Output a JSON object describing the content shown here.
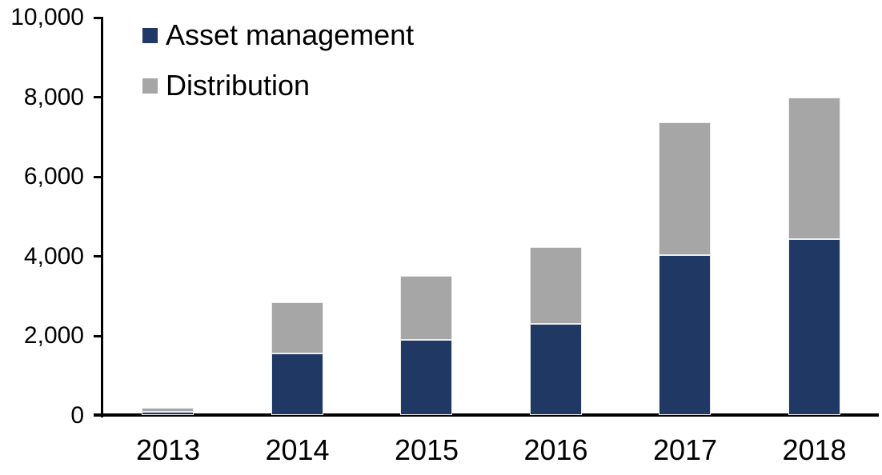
{
  "chart_data": {
    "type": "bar",
    "stacked": true,
    "title": "",
    "xlabel": "",
    "ylabel": "",
    "categories": [
      "2013",
      "2014",
      "2015",
      "2016",
      "2017",
      "2018"
    ],
    "series": [
      {
        "name": "Asset management",
        "color": "#1f3864",
        "values": [
          100,
          1550,
          1900,
          2300,
          4025,
          4425
        ]
      },
      {
        "name": "Distribution",
        "color": "#a6a6a6",
        "values": [
          90,
          1300,
          1600,
          1925,
          3350,
          3575
        ]
      }
    ],
    "stack_totals": [
      190,
      2850,
      3500,
      4225,
      7375,
      8000
    ],
    "ylim": [
      0,
      10000
    ],
    "yticks": [
      0,
      2000,
      4000,
      6000,
      8000,
      10000
    ],
    "ytick_labels": [
      "0",
      "2,000",
      "4,000",
      "6,000",
      "8,000",
      "10,000"
    ],
    "grid": false,
    "legend_position": "top-left-inside"
  },
  "colors": {
    "axis": "#000000",
    "text": "#000000",
    "background": "#ffffff"
  }
}
